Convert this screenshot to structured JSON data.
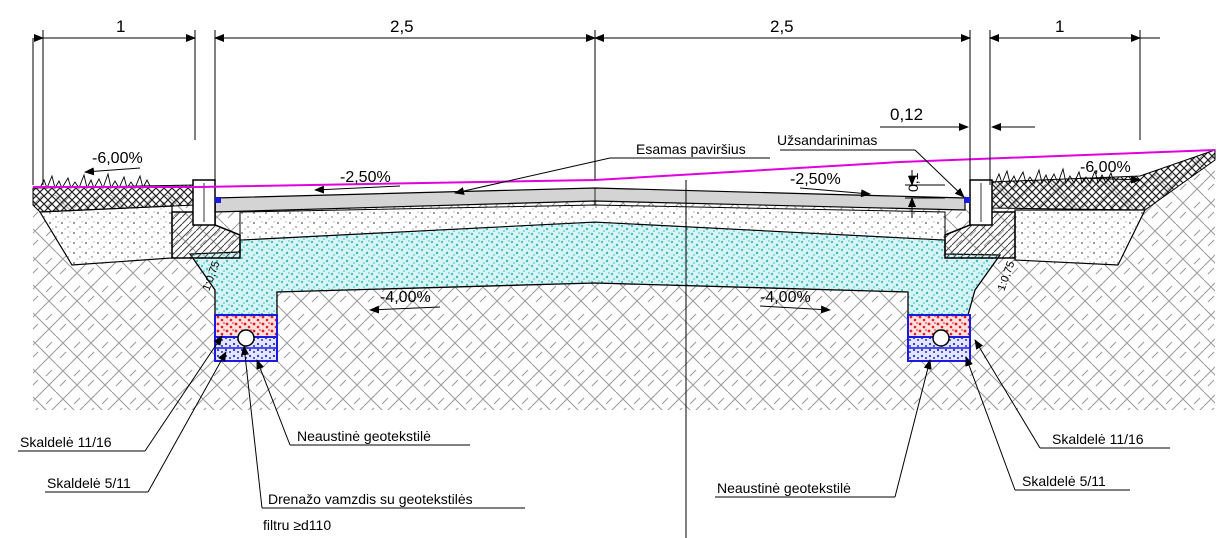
{
  "dimensions": {
    "left_shoulder": "1",
    "left_lane": "2,5",
    "right_lane": "2,5",
    "right_shoulder": "1",
    "seal_width": "0,12",
    "seal_height": "0,1"
  },
  "slopes": {
    "left_shoulder": "-6,00%",
    "left_lane": "-2,50%",
    "right_lane": "-2,50%",
    "right_shoulder": "-6,00%",
    "left_base": "-4,00%",
    "right_base": "-4,00%",
    "left_side": "1:0,75",
    "right_side": "1:0,75"
  },
  "labels": {
    "existing_surface": "Esamas paviršius",
    "sealing": "Užsandarinimas",
    "left_gravel_11_16": "Skaldelė 11/16",
    "left_gravel_5_11": "Skaldelė 5/11",
    "left_geotextile": "Neaustinė geotekstilė",
    "drain_pipe_line1": "Drenažo vamzdis su geotekstilės",
    "drain_pipe_line2": "filtru ≥d110",
    "right_gravel_11_16": "Skaldelė 11/16",
    "right_gravel_5_11": "Skaldelė 5/11",
    "right_geotextile": "Neaustinė geotekstilė"
  },
  "colors": {
    "existing_surface_line": "#e000e0",
    "base_layer": "#7fd6d6",
    "gravel_11_16": "#e0201e",
    "gravel_5_11": "#2030c8",
    "drain_frame": "#1a1ae0",
    "seal": "#1a1ae0"
  }
}
